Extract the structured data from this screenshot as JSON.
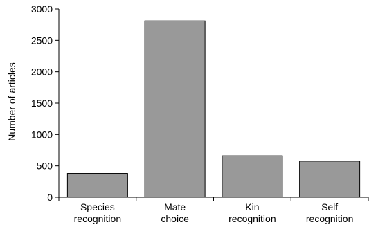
{
  "chart_data": {
    "type": "bar",
    "title": "",
    "xlabel": "",
    "ylabel": "Number of articles",
    "ylim": [
      0,
      3000
    ],
    "yticks": [
      0,
      500,
      1000,
      1500,
      2000,
      2500,
      3000
    ],
    "grid": false,
    "categories": [
      [
        "Species",
        "recognition"
      ],
      [
        "Mate",
        "choice"
      ],
      [
        "Kin",
        "recognition"
      ],
      [
        "Self",
        "recognition"
      ]
    ],
    "values": [
      380,
      2810,
      660,
      575
    ],
    "colors": {
      "bar_fill": "#999999",
      "bar_stroke": "#000000",
      "axis": "#000000"
    }
  }
}
